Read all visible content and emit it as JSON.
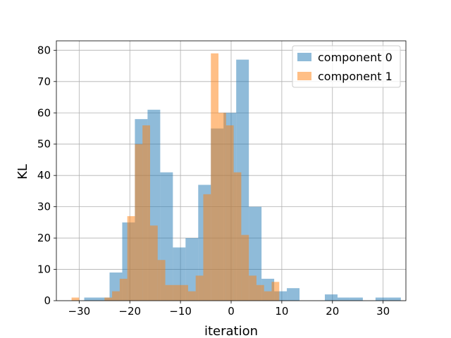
{
  "chart_data": {
    "type": "bar",
    "subtype": "histogram-overlay",
    "title": "",
    "xlabel": "iteration",
    "ylabel": "KL",
    "xlim": [
      -34.5,
      34.5
    ],
    "ylim": [
      0,
      83
    ],
    "xticks": [
      -30,
      -20,
      -10,
      0,
      10,
      20,
      30
    ],
    "yticks": [
      0,
      10,
      20,
      30,
      40,
      50,
      60,
      70,
      80
    ],
    "grid": true,
    "legend": {
      "placement": "top-right"
    },
    "series": [
      {
        "name": "component 0",
        "color": "#1f77b4",
        "opacity": 0.5,
        "bins": [
          {
            "x0": -29.0,
            "x1": -26.5,
            "value": 1
          },
          {
            "x0": -26.5,
            "x1": -24.0,
            "value": 1
          },
          {
            "x0": -24.0,
            "x1": -21.5,
            "value": 9
          },
          {
            "x0": -21.5,
            "x1": -19.0,
            "value": 25
          },
          {
            "x0": -19.0,
            "x1": -16.5,
            "value": 58
          },
          {
            "x0": -16.5,
            "x1": -14.0,
            "value": 61
          },
          {
            "x0": -14.0,
            "x1": -11.5,
            "value": 41
          },
          {
            "x0": -11.5,
            "x1": -9.0,
            "value": 17
          },
          {
            "x0": -9.0,
            "x1": -6.5,
            "value": 20
          },
          {
            "x0": -6.5,
            "x1": -4.0,
            "value": 37
          },
          {
            "x0": -4.0,
            "x1": -1.5,
            "value": 55
          },
          {
            "x0": -1.5,
            "x1": 1.0,
            "value": 60
          },
          {
            "x0": 1.0,
            "x1": 3.5,
            "value": 77
          },
          {
            "x0": 3.5,
            "x1": 6.0,
            "value": 30
          },
          {
            "x0": 6.0,
            "x1": 8.5,
            "value": 7
          },
          {
            "x0": 8.5,
            "x1": 11.0,
            "value": 3
          },
          {
            "x0": 11.0,
            "x1": 13.5,
            "value": 4
          },
          {
            "x0": 18.5,
            "x1": 21.0,
            "value": 2
          },
          {
            "x0": 21.0,
            "x1": 23.5,
            "value": 1
          },
          {
            "x0": 23.5,
            "x1": 26.0,
            "value": 1
          },
          {
            "x0": 28.5,
            "x1": 31.0,
            "value": 1
          },
          {
            "x0": 31.0,
            "x1": 33.5,
            "value": 1
          }
        ]
      },
      {
        "name": "component 1",
        "color": "#ff7f0e",
        "opacity": 0.5,
        "bins": [
          {
            "x0": -31.5,
            "x1": -30.0,
            "value": 1
          },
          {
            "x0": -25.0,
            "x1": -23.5,
            "value": 1
          },
          {
            "x0": -23.5,
            "x1": -22.0,
            "value": 3
          },
          {
            "x0": -22.0,
            "x1": -20.5,
            "value": 7
          },
          {
            "x0": -20.5,
            "x1": -19.0,
            "value": 27
          },
          {
            "x0": -19.0,
            "x1": -17.5,
            "value": 50
          },
          {
            "x0": -17.5,
            "x1": -16.0,
            "value": 56
          },
          {
            "x0": -16.0,
            "x1": -14.5,
            "value": 24
          },
          {
            "x0": -14.5,
            "x1": -13.0,
            "value": 13
          },
          {
            "x0": -13.0,
            "x1": -11.5,
            "value": 5
          },
          {
            "x0": -11.5,
            "x1": -10.0,
            "value": 5
          },
          {
            "x0": -10.0,
            "x1": -8.5,
            "value": 5
          },
          {
            "x0": -8.5,
            "x1": -7.0,
            "value": 3
          },
          {
            "x0": -7.0,
            "x1": -5.5,
            "value": 8
          },
          {
            "x0": -5.5,
            "x1": -4.0,
            "value": 34
          },
          {
            "x0": -4.0,
            "x1": -2.5,
            "value": 79
          },
          {
            "x0": -2.5,
            "x1": -1.0,
            "value": 60
          },
          {
            "x0": -1.0,
            "x1": 0.5,
            "value": 56
          },
          {
            "x0": 0.5,
            "x1": 2.0,
            "value": 41
          },
          {
            "x0": 2.0,
            "x1": 3.5,
            "value": 21
          },
          {
            "x0": 3.5,
            "x1": 5.0,
            "value": 8
          },
          {
            "x0": 5.0,
            "x1": 6.5,
            "value": 5
          },
          {
            "x0": 6.5,
            "x1": 8.0,
            "value": 3
          },
          {
            "x0": 8.0,
            "x1": 9.5,
            "value": 6
          }
        ]
      }
    ]
  }
}
